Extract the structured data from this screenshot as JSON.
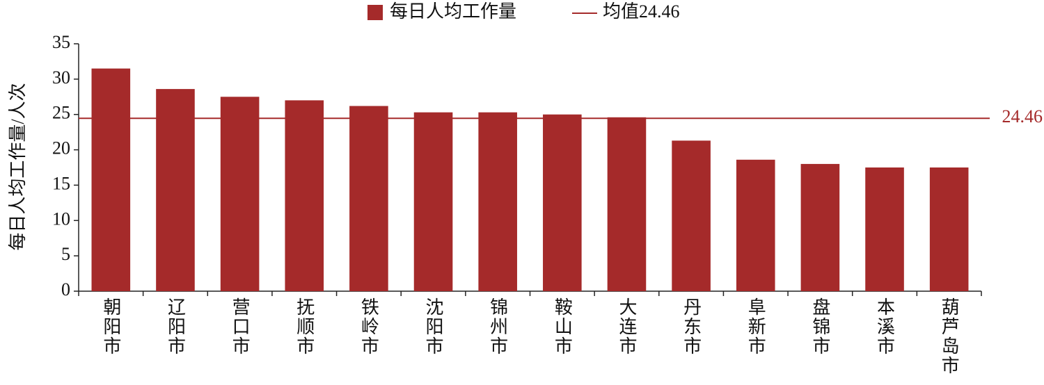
{
  "chart_data": {
    "type": "bar",
    "y_label": "每日人均工作量/人次",
    "categories": [
      "朝阳市",
      "辽阳市",
      "营口市",
      "抚顺市",
      "铁岭市",
      "沈阳市",
      "锦州市",
      "鞍山市",
      "大连市",
      "丹东市",
      "阜新市",
      "盘锦市",
      "本溪市",
      "葫芦岛市"
    ],
    "series": [
      {
        "name": "每日人均工作量",
        "color": "#a52a2a",
        "values": [
          31.5,
          28.6,
          27.5,
          27.0,
          26.2,
          25.3,
          25.3,
          25.0,
          24.6,
          21.3,
          18.6,
          18.0,
          17.5,
          17.5
        ]
      }
    ],
    "reference_line": {
      "name": "均值24.46",
      "value": 24.46,
      "color": "#a52a2a"
    },
    "ylim": [
      0,
      35
    ],
    "yticks": [
      0,
      5,
      10,
      15,
      20,
      25,
      30,
      35
    ],
    "grid": false
  }
}
